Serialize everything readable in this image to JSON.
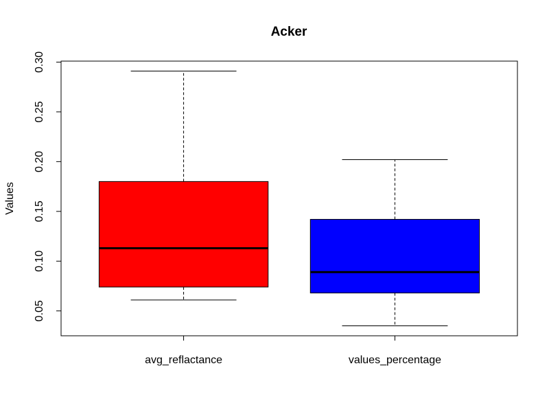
{
  "chart_data": {
    "type": "boxplot",
    "title": "Acker",
    "xlabel": "",
    "ylabel": "Values",
    "ylim": [
      0.025,
      0.301
    ],
    "y_ticks": [
      "0.05",
      "0.10",
      "0.15",
      "0.20",
      "0.25",
      "0.30"
    ],
    "grid": false,
    "legend": "none",
    "categories": [
      "avg_reflactance",
      "values_percentage"
    ],
    "boxes": [
      {
        "name": "avg_reflactance",
        "min": 0.061,
        "q1": 0.074,
        "median": 0.113,
        "q3": 0.18,
        "max": 0.291,
        "color": "#ff0000"
      },
      {
        "name": "values_percentage",
        "min": 0.035,
        "q1": 0.068,
        "median": 0.089,
        "q3": 0.142,
        "max": 0.202,
        "color": "#0000ff"
      }
    ]
  }
}
